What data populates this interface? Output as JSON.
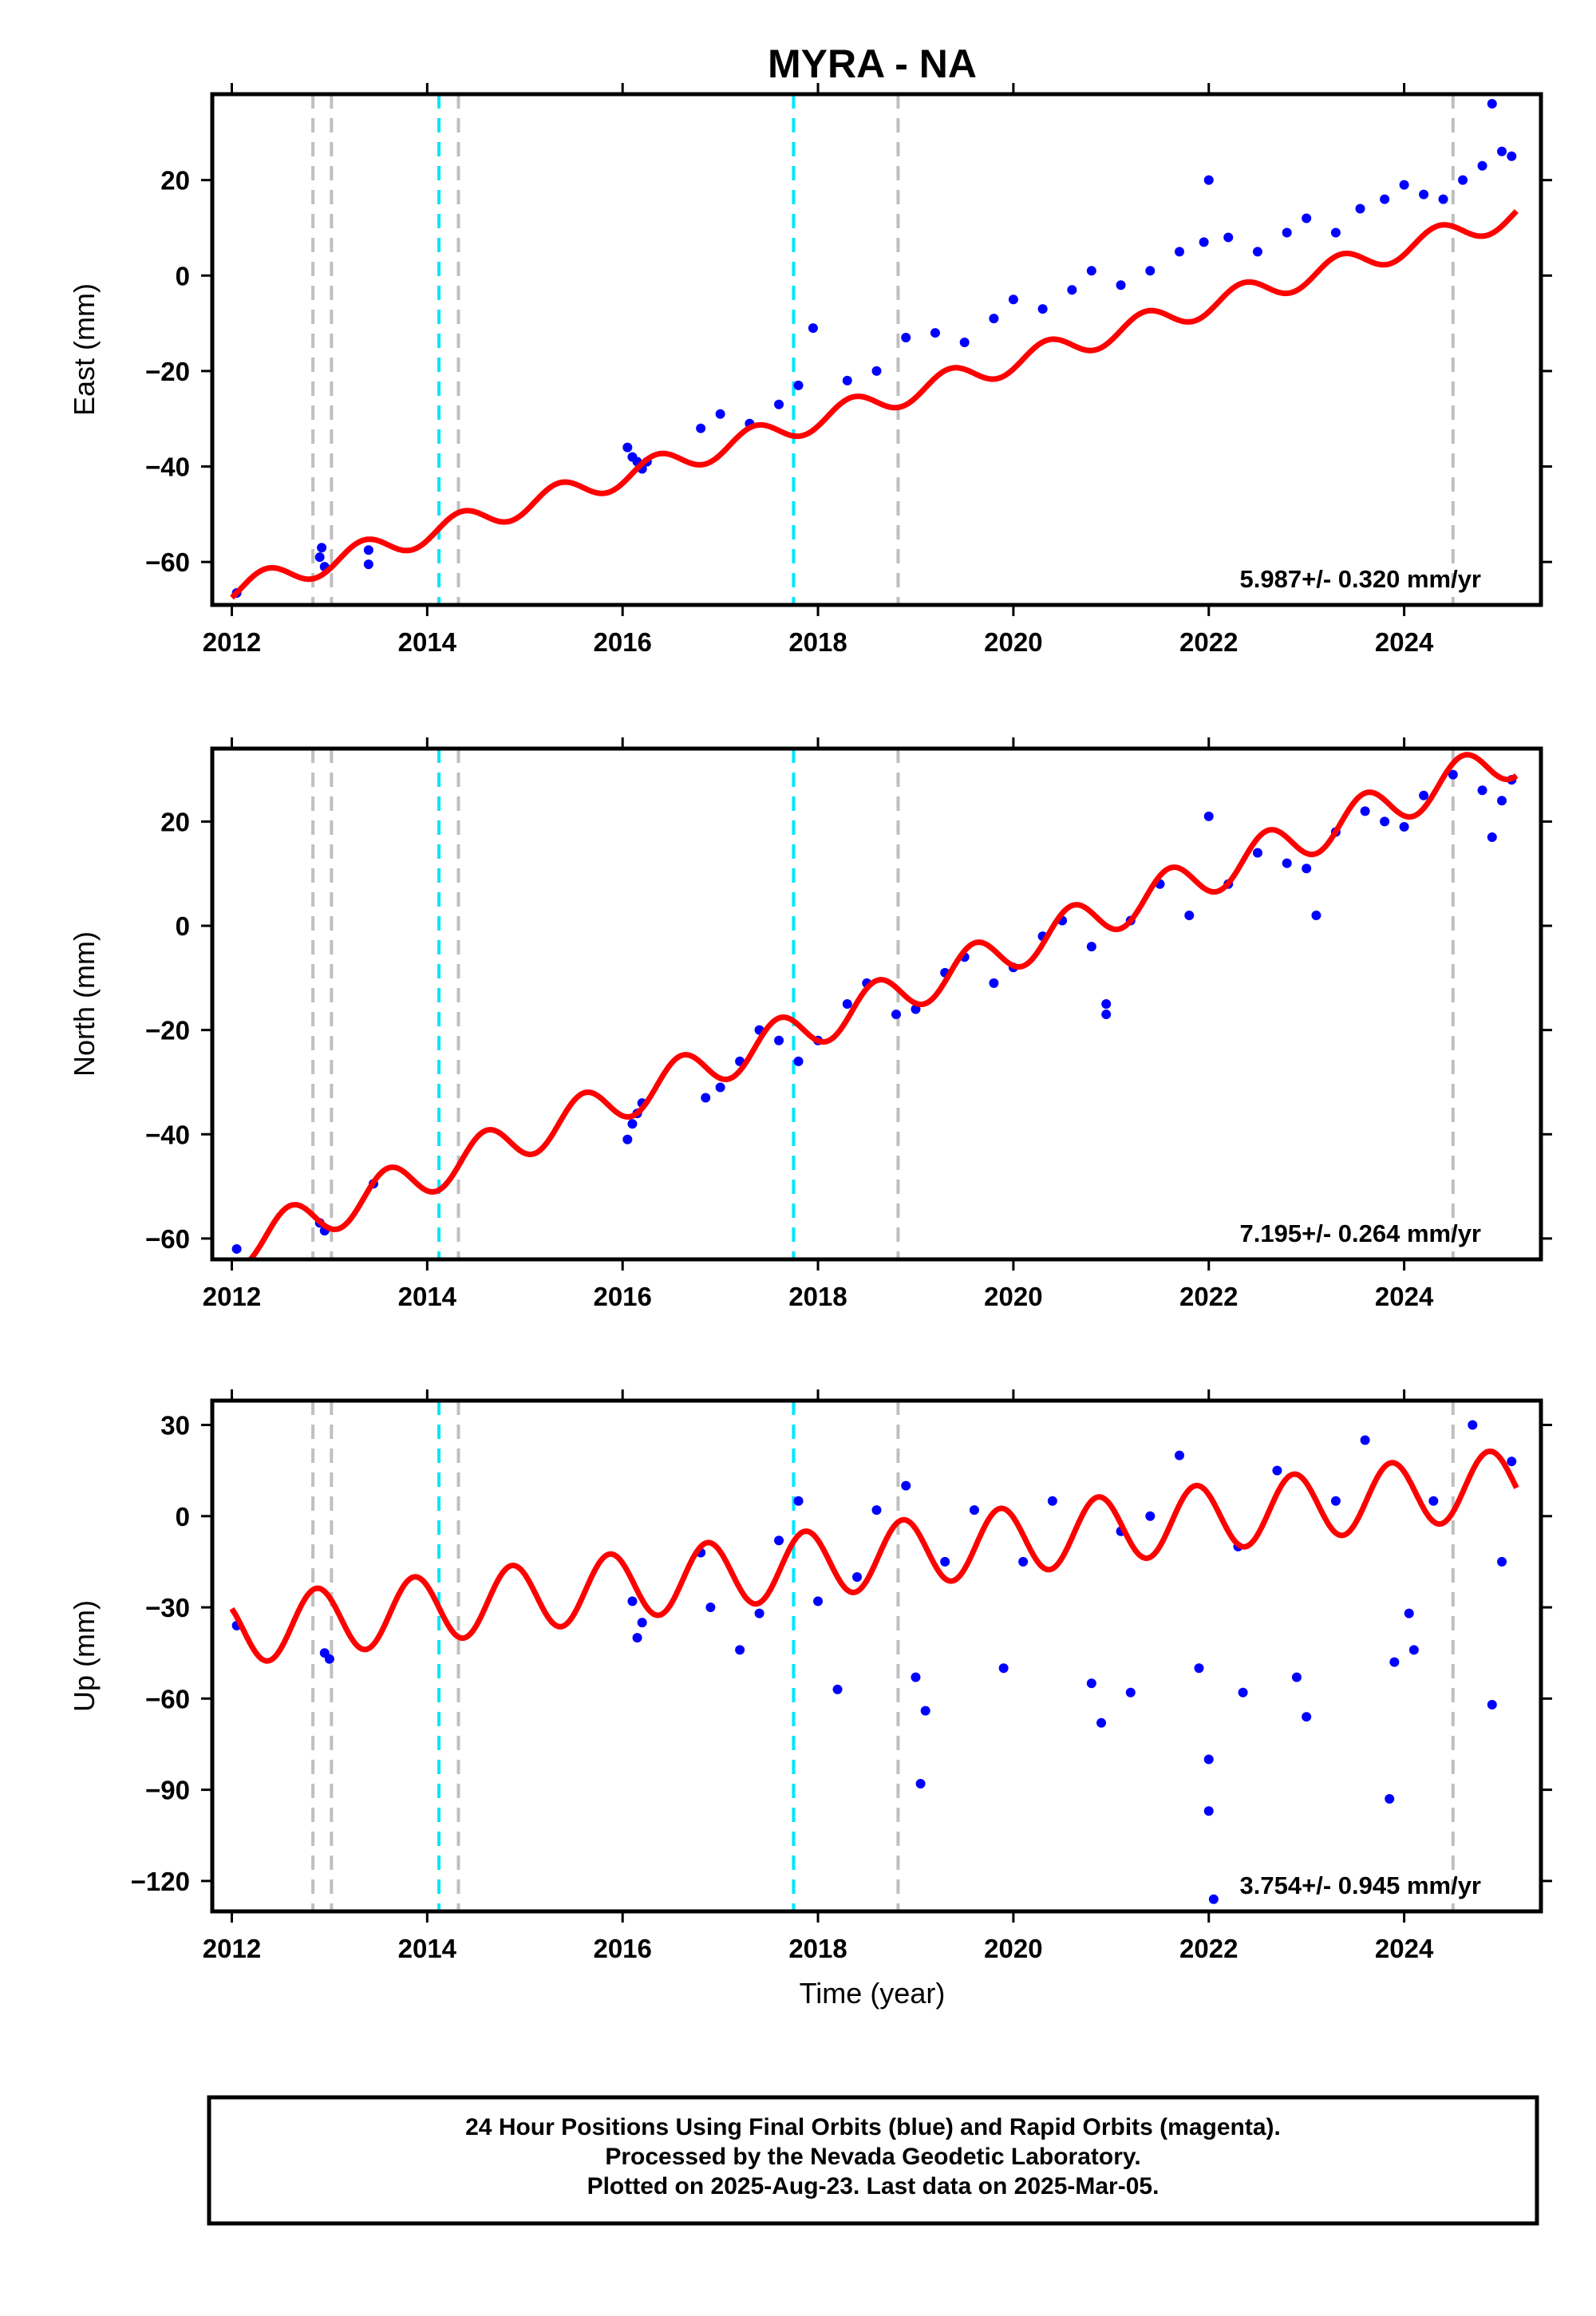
{
  "title": "MYRA - NA",
  "xlabel": "Time (year)",
  "xlim": [
    2011.8,
    2025.4
  ],
  "xticks": [
    2012,
    2014,
    2016,
    2018,
    2020,
    2022,
    2024
  ],
  "event_lines": {
    "gray": [
      2012.83,
      2013.02,
      2014.32,
      2018.82,
      2024.5
    ],
    "cyan": [
      2014.12,
      2017.75
    ],
    "gray_color": "#bfbfbf",
    "cyan_color": "#00e5ff"
  },
  "colors": {
    "data": "#0000ff",
    "model": "#ff0000"
  },
  "chart_data": [
    {
      "type": "scatter",
      "name": "east",
      "ylabel": "East (mm)",
      "ylim": [
        -69,
        38
      ],
      "yticks": [
        -60,
        -40,
        -20,
        0,
        20
      ],
      "rate": "5.987+/- 0.320 mm/yr",
      "model": {
        "slope": 5.987,
        "intercept_at_2012": -66,
        "annual_amp": 2.5,
        "annual_phase": 0.1
      },
      "points": [
        [
          2012.05,
          -66.5
        ],
        [
          2012.9,
          -59
        ],
        [
          2012.95,
          -61
        ],
        [
          2012.92,
          -57
        ],
        [
          2013.4,
          -57.5
        ],
        [
          2013.4,
          -60.5
        ],
        [
          2016.05,
          -36
        ],
        [
          2016.1,
          -38
        ],
        [
          2016.15,
          -39
        ],
        [
          2016.2,
          -40.5
        ],
        [
          2016.25,
          -39
        ],
        [
          2016.8,
          -32
        ],
        [
          2017.0,
          -29
        ],
        [
          2017.3,
          -31
        ],
        [
          2017.6,
          -27
        ],
        [
          2017.8,
          -23
        ],
        [
          2017.95,
          -11
        ],
        [
          2018.3,
          -22
        ],
        [
          2018.6,
          -20
        ],
        [
          2018.9,
          -13
        ],
        [
          2019.2,
          -12
        ],
        [
          2019.5,
          -14
        ],
        [
          2019.8,
          -9
        ],
        [
          2020.0,
          -5
        ],
        [
          2020.3,
          -7
        ],
        [
          2020.6,
          -3
        ],
        [
          2020.8,
          1
        ],
        [
          2021.1,
          -2
        ],
        [
          2021.4,
          1
        ],
        [
          2021.7,
          5
        ],
        [
          2021.95,
          7
        ],
        [
          2022.0,
          20
        ],
        [
          2022.2,
          8
        ],
        [
          2022.5,
          5
        ],
        [
          2022.8,
          9
        ],
        [
          2023.0,
          12
        ],
        [
          2023.3,
          9
        ],
        [
          2023.55,
          14
        ],
        [
          2023.8,
          16
        ],
        [
          2024.0,
          19
        ],
        [
          2024.2,
          17
        ],
        [
          2024.4,
          16
        ],
        [
          2024.6,
          20
        ],
        [
          2024.8,
          23
        ],
        [
          2024.9,
          36
        ],
        [
          2025.0,
          26
        ],
        [
          2025.1,
          25
        ]
      ]
    },
    {
      "type": "scatter",
      "name": "north",
      "ylabel": "North (mm)",
      "ylim": [
        -64,
        34
      ],
      "yticks": [
        -60,
        -40,
        -20,
        0,
        20
      ],
      "rate": "7.195+/- 0.264 mm/yr",
      "model": {
        "slope": 7.195,
        "intercept_at_2012": -62,
        "annual_amp": 4,
        "annual_phase": 0.35
      },
      "points": [
        [
          2012.05,
          -62
        ],
        [
          2012.9,
          -57
        ],
        [
          2012.95,
          -58.5
        ],
        [
          2013.45,
          -49.5
        ],
        [
          2016.05,
          -41
        ],
        [
          2016.1,
          -38
        ],
        [
          2016.15,
          -36
        ],
        [
          2016.2,
          -34
        ],
        [
          2016.85,
          -33
        ],
        [
          2017.0,
          -31
        ],
        [
          2017.2,
          -26
        ],
        [
          2017.4,
          -20
        ],
        [
          2017.6,
          -22
        ],
        [
          2017.8,
          -26
        ],
        [
          2018.0,
          -22
        ],
        [
          2018.3,
          -15
        ],
        [
          2018.5,
          -11
        ],
        [
          2018.8,
          -17
        ],
        [
          2019.0,
          -16
        ],
        [
          2019.3,
          -9
        ],
        [
          2019.5,
          -6
        ],
        [
          2019.8,
          -11
        ],
        [
          2020.0,
          -8
        ],
        [
          2020.3,
          -2
        ],
        [
          2020.5,
          1
        ],
        [
          2020.8,
          -4
        ],
        [
          2020.95,
          -17
        ],
        [
          2020.95,
          -15
        ],
        [
          2021.2,
          1
        ],
        [
          2021.5,
          8
        ],
        [
          2021.8,
          2
        ],
        [
          2022.0,
          21
        ],
        [
          2022.2,
          8
        ],
        [
          2022.5,
          14
        ],
        [
          2022.8,
          12
        ],
        [
          2023.0,
          11
        ],
        [
          2023.1,
          2
        ],
        [
          2023.3,
          18
        ],
        [
          2023.6,
          22
        ],
        [
          2023.8,
          20
        ],
        [
          2024.0,
          19
        ],
        [
          2024.2,
          25
        ],
        [
          2024.5,
          29
        ],
        [
          2024.8,
          26
        ],
        [
          2024.9,
          17
        ],
        [
          2025.0,
          24
        ],
        [
          2025.1,
          28
        ]
      ]
    },
    {
      "type": "scatter",
      "name": "up",
      "ylabel": "Up (mm)",
      "ylim": [
        -130,
        38
      ],
      "yticks": [
        -120,
        -90,
        -60,
        -30,
        0,
        30
      ],
      "rate": "3.754+/- 0.945 mm/yr",
      "model": {
        "slope": 3.754,
        "intercept_at_2012": -38,
        "annual_amp": 11,
        "annual_phase": 0.62
      },
      "points": [
        [
          2012.05,
          -36
        ],
        [
          2012.95,
          -45
        ],
        [
          2013.0,
          -47
        ],
        [
          2016.1,
          -28
        ],
        [
          2016.2,
          -35
        ],
        [
          2016.15,
          -40
        ],
        [
          2016.8,
          -12
        ],
        [
          2016.9,
          -30
        ],
        [
          2017.2,
          -44
        ],
        [
          2017.4,
          -32
        ],
        [
          2017.6,
          -8
        ],
        [
          2017.8,
          5
        ],
        [
          2018.0,
          -28
        ],
        [
          2018.2,
          -57
        ],
        [
          2018.4,
          -20
        ],
        [
          2018.6,
          2
        ],
        [
          2018.9,
          10
        ],
        [
          2019.05,
          -88
        ],
        [
          2019.1,
          -64
        ],
        [
          2019.0,
          -53
        ],
        [
          2019.3,
          -15
        ],
        [
          2019.6,
          2
        ],
        [
          2019.9,
          -50
        ],
        [
          2020.1,
          -15
        ],
        [
          2020.4,
          5
        ],
        [
          2020.8,
          -55
        ],
        [
          2020.9,
          -68
        ],
        [
          2021.1,
          -5
        ],
        [
          2021.2,
          -58
        ],
        [
          2021.4,
          0
        ],
        [
          2021.7,
          20
        ],
        [
          2021.9,
          -50
        ],
        [
          2022.0,
          -80
        ],
        [
          2022.0,
          -97
        ],
        [
          2022.05,
          -126
        ],
        [
          2022.3,
          -10
        ],
        [
          2022.35,
          -58
        ],
        [
          2022.7,
          15
        ],
        [
          2022.9,
          -53
        ],
        [
          2023.0,
          -66
        ],
        [
          2023.3,
          5
        ],
        [
          2023.6,
          25
        ],
        [
          2023.85,
          -93
        ],
        [
          2023.9,
          -48
        ],
        [
          2024.05,
          -32
        ],
        [
          2024.1,
          -44
        ],
        [
          2024.3,
          5
        ],
        [
          2024.7,
          30
        ],
        [
          2024.9,
          -62
        ],
        [
          2025.0,
          -15
        ],
        [
          2025.1,
          18
        ]
      ]
    }
  ],
  "footer": {
    "line1": "24 Hour Positions Using Final Orbits (blue) and Rapid Orbits (magenta).",
    "line2": "Processed by the Nevada Geodetic Laboratory.",
    "line3": "Plotted on 2025-Aug-23. Last data on 2025-Mar-05."
  }
}
